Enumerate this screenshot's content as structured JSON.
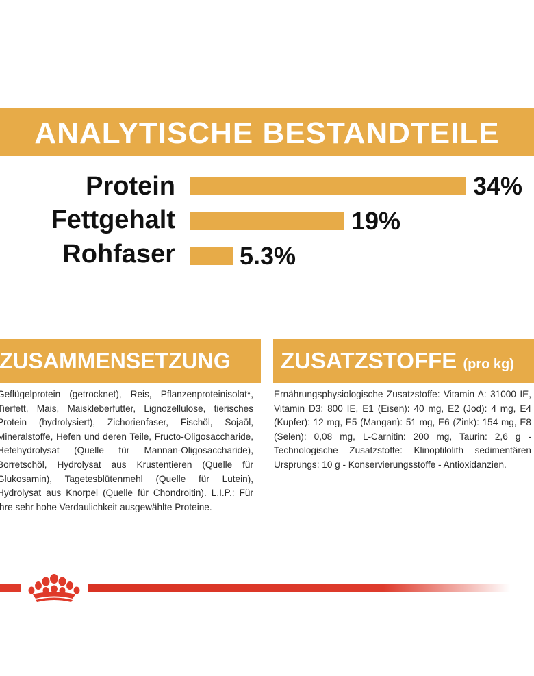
{
  "analytics": {
    "title": "ANALYTISCHE BESTANDTEILE",
    "rows": [
      {
        "label": "Protein",
        "value": "34%",
        "fraction": 0.34
      },
      {
        "label": "Fettgehalt",
        "value": "19%",
        "fraction": 0.19
      },
      {
        "label": "Rohfaser",
        "value": "5.3%",
        "fraction": 0.053
      }
    ]
  },
  "composition": {
    "title": "ZUSAMMENSETZUNG",
    "text": "Geflügelprotein (getrocknet), Reis, Pflanzenproteinisolat*, Tierfett, Mais, Maiskleberfutter, Lignozellulose, tierisches Protein (hydrolysiert), Zichorienfaser, Fischöl, Sojaöl, Mineralstoffe, Hefen und deren Teile, Fructo-Oligosaccharide, Hefehydrolysat (Quelle für Mannan-Oligosaccharide), Borretschöl, Hydrolysat aus Krustentieren (Quelle für Glukosamin), Tagetesblütenmehl (Quelle für Lutein), Hydrolysat aus Knorpel (Quelle für Chondroitin). L.I.P.: Für ihre sehr hohe Verdaulichkeit ausgewählte Proteine."
  },
  "additives": {
    "title": "ZUSATZSTOFFE",
    "title_suffix": "(pro kg)",
    "text": "Ernährungsphysiologische Zusatzstoffe: Vitamin A: 31000 IE, Vitamin D3: 800 IE, E1 (Eisen): 40 mg, E2 (Jod): 4 mg, E4 (Kupfer): 12 mg, E5 (Mangan): 51 mg, E6 (Zink): 154 mg, E8 (Selen): 0,08 mg, L-Carnitin: 200 mg, Taurin: 2,6 g - Technologische Zusatzstoffe: Klinoptilolith sedimentären Ursprungs: 10 g - Konservierungsstoffe - Antioxidanzien."
  },
  "colors": {
    "accent": "#e7ab48",
    "brand_red": "#df3a2a",
    "text": "#111111"
  },
  "logo": {
    "icon": "crown-icon"
  }
}
